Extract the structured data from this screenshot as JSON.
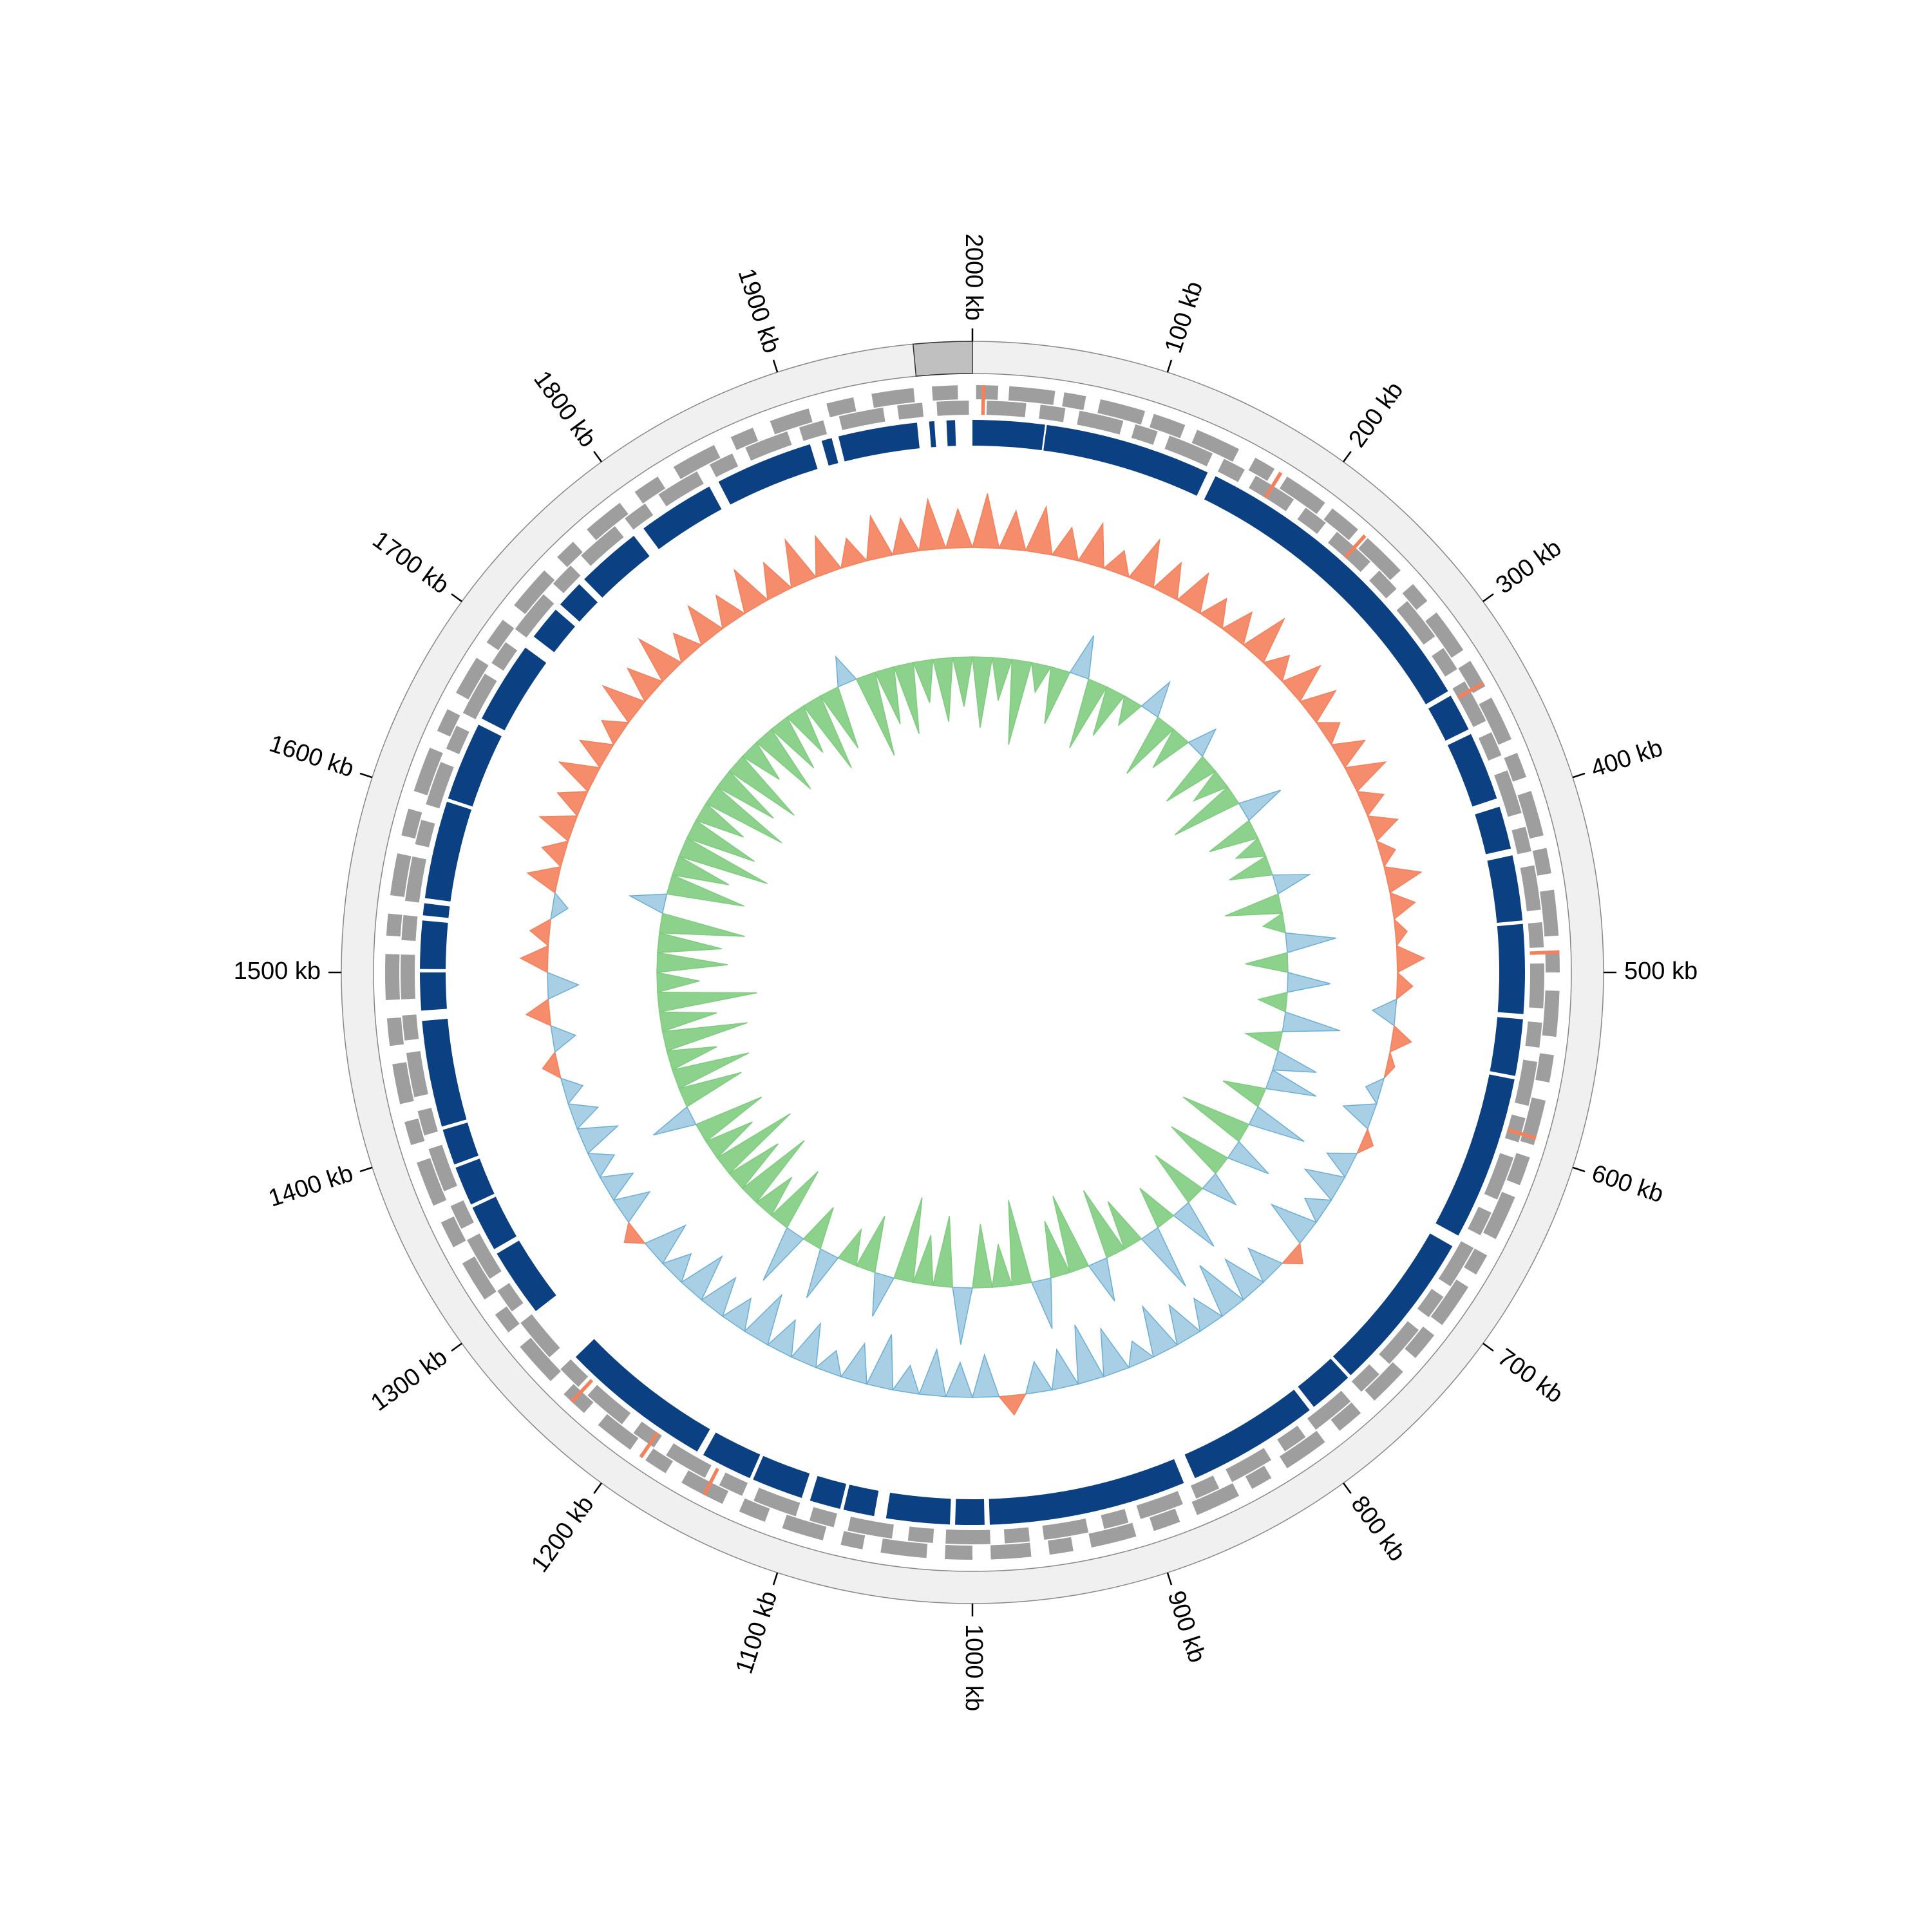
{
  "chart_data": {
    "type": "circular-genome",
    "xlim": [
      0,
      2000
    ],
    "xticks": [
      {
        "value": 100,
        "label": "100 kb"
      },
      {
        "value": 200,
        "label": "200 kb"
      },
      {
        "value": 300,
        "label": "300 kb"
      },
      {
        "value": 400,
        "label": "400 kb"
      },
      {
        "value": 500,
        "label": "500 kb"
      },
      {
        "value": 600,
        "label": "600 kb"
      },
      {
        "value": 700,
        "label": "700 kb"
      },
      {
        "value": 800,
        "label": "800 kb"
      },
      {
        "value": 900,
        "label": "900 kb"
      },
      {
        "value": 1000,
        "label": "1000 kb"
      },
      {
        "value": 1100,
        "label": "1100 kb"
      },
      {
        "value": 1200,
        "label": "1200 kb"
      },
      {
        "value": 1300,
        "label": "1300 kb"
      },
      {
        "value": 1400,
        "label": "1400 kb"
      },
      {
        "value": 1500,
        "label": "1500 kb"
      },
      {
        "value": 1600,
        "label": "1600 kb"
      },
      {
        "value": 1700,
        "label": "1700 kb"
      },
      {
        "value": 1800,
        "label": "1800 kb"
      },
      {
        "value": 1900,
        "label": "1900 kb"
      },
      {
        "value": 2000,
        "label": "2000 kb"
      }
    ],
    "highlight": {
      "range": [
        1970,
        2000
      ],
      "color": "#c0c0c0"
    },
    "forward_genes": {
      "color": "#9e9e9e",
      "features": [
        [
          2,
          14
        ],
        [
          20,
          45
        ],
        [
          50,
          62
        ],
        [
          70,
          95
        ],
        [
          100,
          118
        ],
        [
          125,
          150
        ],
        [
          160,
          172
        ],
        [
          180,
          205
        ],
        [
          210,
          228
        ],
        [
          235,
          260
        ],
        [
          270,
          282
        ],
        [
          290,
          315
        ],
        [
          322,
          338
        ],
        [
          345,
          370
        ],
        [
          378,
          392
        ],
        [
          400,
          425
        ],
        [
          432,
          446
        ],
        [
          455,
          480
        ],
        [
          488,
          500
        ],
        [
          510,
          535
        ],
        [
          545,
          560
        ],
        [
          570,
          595
        ],
        [
          602,
          618
        ],
        [
          625,
          650
        ],
        [
          660,
          672
        ],
        [
          680,
          705
        ],
        [
          712,
          728
        ],
        [
          738,
          760
        ],
        [
          770,
          785
        ],
        [
          795,
          820
        ],
        [
          830,
          842
        ],
        [
          850,
          875
        ],
        [
          885,
          900
        ],
        [
          910,
          935
        ],
        [
          945,
          958
        ],
        [
          968,
          990
        ],
        [
          1000,
          1015
        ],
        [
          1025,
          1050
        ],
        [
          1060,
          1072
        ],
        [
          1082,
          1105
        ],
        [
          1115,
          1130
        ],
        [
          1140,
          1165
        ],
        [
          1175,
          1188
        ],
        [
          1198,
          1220
        ],
        [
          1230,
          1245
        ],
        [
          1255,
          1280
        ],
        [
          1290,
          1302
        ],
        [
          1312,
          1335
        ],
        [
          1345,
          1360
        ],
        [
          1370,
          1395
        ],
        [
          1405,
          1418
        ],
        [
          1428,
          1450
        ],
        [
          1460,
          1475
        ],
        [
          1485,
          1510
        ],
        [
          1520,
          1532
        ],
        [
          1542,
          1565
        ],
        [
          1575,
          1590
        ],
        [
          1600,
          1625
        ],
        [
          1635,
          1648
        ],
        [
          1658,
          1680
        ],
        [
          1690,
          1705
        ],
        [
          1715,
          1740
        ],
        [
          1750,
          1762
        ],
        [
          1772,
          1795
        ],
        [
          1805,
          1820
        ],
        [
          1830,
          1855
        ],
        [
          1865,
          1878
        ],
        [
          1888,
          1910
        ],
        [
          1920,
          1935
        ],
        [
          1945,
          1968
        ],
        [
          1978,
          1992
        ]
      ]
    },
    "reverse_genes": {
      "color": "#9e9e9e",
      "features": [
        [
          8,
          30
        ],
        [
          38,
          52
        ],
        [
          60,
          85
        ],
        [
          92,
          105
        ],
        [
          112,
          138
        ],
        [
          145,
          158
        ],
        [
          165,
          190
        ],
        [
          198,
          212
        ],
        [
          220,
          245
        ],
        [
          252,
          266
        ],
        [
          275,
          300
        ],
        [
          308,
          322
        ],
        [
          330,
          355
        ],
        [
          362,
          376
        ],
        [
          385,
          410
        ],
        [
          418,
          432
        ],
        [
          440,
          465
        ],
        [
          472,
          486
        ],
        [
          495,
          520
        ],
        [
          528,
          542
        ],
        [
          550,
          575
        ],
        [
          582,
          596
        ],
        [
          605,
          630
        ],
        [
          638,
          652
        ],
        [
          660,
          685
        ],
        [
          692,
          706
        ],
        [
          715,
          740
        ],
        [
          748,
          762
        ],
        [
          770,
          795
        ],
        [
          802,
          816
        ],
        [
          825,
          850
        ],
        [
          858,
          872
        ],
        [
          880,
          905
        ],
        [
          912,
          926
        ],
        [
          935,
          960
        ],
        [
          968,
          982
        ],
        [
          990,
          1015
        ],
        [
          1022,
          1036
        ],
        [
          1045,
          1070
        ],
        [
          1078,
          1092
        ],
        [
          1100,
          1125
        ],
        [
          1132,
          1146
        ],
        [
          1155,
          1180
        ],
        [
          1188,
          1202
        ],
        [
          1210,
          1235
        ],
        [
          1242,
          1256
        ],
        [
          1265,
          1290
        ],
        [
          1298,
          1312
        ],
        [
          1320,
          1345
        ],
        [
          1352,
          1366
        ],
        [
          1375,
          1400
        ],
        [
          1408,
          1422
        ],
        [
          1430,
          1455
        ],
        [
          1462,
          1476
        ],
        [
          1485,
          1510
        ],
        [
          1518,
          1532
        ],
        [
          1540,
          1565
        ],
        [
          1572,
          1586
        ],
        [
          1595,
          1620
        ],
        [
          1628,
          1642
        ],
        [
          1650,
          1675
        ],
        [
          1682,
          1696
        ],
        [
          1705,
          1730
        ],
        [
          1738,
          1752
        ],
        [
          1760,
          1785
        ],
        [
          1792,
          1806
        ],
        [
          1815,
          1840
        ],
        [
          1848,
          1862
        ],
        [
          1870,
          1895
        ],
        [
          1902,
          1916
        ],
        [
          1925,
          1950
        ],
        [
          1958,
          1972
        ],
        [
          1980,
          1998
        ]
      ]
    },
    "rna_genes": {
      "color": "#f4805c",
      "features": [
        [
          5,
          7
        ],
        [
          175,
          177
        ],
        [
          232,
          234
        ],
        [
          335,
          337
        ],
        [
          488,
          490
        ],
        [
          590,
          592
        ],
        [
          1150,
          1152
        ],
        [
          1190,
          1192
        ],
        [
          1238,
          1240
        ]
      ]
    },
    "contigs": {
      "color": "#0b4083",
      "features": [
        [
          0,
          42
        ],
        [
          43,
          140
        ],
        [
          145,
          330
        ],
        [
          333,
          355
        ],
        [
          358,
          398
        ],
        [
          403,
          428
        ],
        [
          432,
          470
        ],
        [
          472,
          524
        ],
        [
          527,
          560
        ],
        [
          562,
          658
        ],
        [
          665,
          760
        ],
        [
          762,
          788
        ],
        [
          791,
          868
        ],
        [
          875,
          990
        ],
        [
          993,
          1010
        ],
        [
          1013,
          1050
        ],
        [
          1057,
          1075
        ],
        [
          1077,
          1095
        ],
        [
          1100,
          1130
        ],
        [
          1132,
          1162
        ],
        [
          1166,
          1255
        ],
        [
          1290,
          1330
        ],
        [
          1333,
          1360
        ],
        [
          1362,
          1385
        ],
        [
          1387,
          1408
        ],
        [
          1410,
          1472
        ],
        [
          1478,
          1500
        ],
        [
          1502,
          1530
        ],
        [
          1533,
          1540
        ],
        [
          1543,
          1600
        ],
        [
          1602,
          1648
        ],
        [
          1652,
          1700
        ],
        [
          1708,
          1728
        ],
        [
          1732,
          1748
        ],
        [
          1752,
          1790
        ],
        [
          1797,
          1842
        ],
        [
          1848,
          1905
        ],
        [
          1912,
          1918
        ],
        [
          1922,
          1968
        ],
        [
          1975,
          1978
        ],
        [
          1985,
          1990
        ]
      ]
    },
    "gc_content": {
      "color": "#f4805c",
      "negative_color": "#9ecae1",
      "ylim": [
        -1,
        1
      ],
      "x": [
        0,
        20,
        40,
        60,
        80,
        100,
        120,
        140,
        160,
        180,
        200,
        220,
        240,
        260,
        280,
        300,
        320,
        340,
        360,
        380,
        400,
        420,
        440,
        460,
        480,
        500,
        520,
        540,
        560,
        580,
        600,
        620,
        640,
        660,
        680,
        700,
        720,
        740,
        760,
        780,
        800,
        820,
        840,
        860,
        880,
        900,
        920,
        940,
        960,
        980,
        1000,
        1020,
        1040,
        1060,
        1080,
        1100,
        1120,
        1140,
        1160,
        1180,
        1200,
        1220,
        1240,
        1260,
        1280,
        1300,
        1320,
        1340,
        1360,
        1380,
        1400,
        1420,
        1440,
        1460,
        1480,
        1500,
        1520,
        1540,
        1560,
        1580,
        1600,
        1620,
        1640,
        1660,
        1680,
        1700,
        1720,
        1740,
        1760,
        1780,
        1800,
        1820,
        1840,
        1860,
        1880,
        1900,
        1920,
        1940,
        1960,
        1980
      ],
      "values": [
        0.7,
        0.5,
        0.6,
        0.4,
        0.55,
        0.3,
        0.6,
        0.45,
        0.5,
        0.35,
        0.4,
        0.6,
        0.3,
        0.5,
        0.45,
        0.25,
        0.4,
        0.5,
        0.3,
        0.35,
        0.2,
        0.45,
        0.3,
        0.15,
        0.35,
        0.2,
        -0.3,
        0.25,
        0.1,
        -0.2,
        -0.4,
        0.15,
        -0.35,
        -0.5,
        -0.3,
        -0.6,
        0.2,
        -0.45,
        -0.55,
        -0.7,
        -0.4,
        -0.5,
        -0.65,
        -0.3,
        -0.6,
        -0.75,
        -0.5,
        -0.4,
        0.25,
        -0.55,
        -0.45,
        -0.6,
        -0.35,
        -0.7,
        -0.5,
        -0.3,
        -0.55,
        -0.45,
        -0.65,
        -0.4,
        -0.5,
        -0.6,
        -0.35,
        -0.55,
        0.2,
        -0.45,
        -0.4,
        -0.3,
        -0.5,
        -0.35,
        -0.25,
        0.2,
        -0.3,
        0.3,
        -0.4,
        0.35,
        0.25,
        -0.2,
        0.4,
        0.3,
        0.45,
        0.35,
        0.5,
        0.4,
        0.3,
        0.55,
        0.45,
        0.6,
        0.35,
        0.5,
        0.4,
        0.55,
        0.45,
        0.6,
        0.5,
        0.35,
        0.55,
        0.45,
        0.65,
        0.5
      ]
    },
    "gc_skew": {
      "color": "#7fcc7f",
      "negative_color": "#9ecae1",
      "ylim": [
        -1,
        1
      ],
      "x": [
        0,
        20,
        40,
        60,
        80,
        100,
        120,
        140,
        160,
        180,
        200,
        220,
        240,
        260,
        280,
        300,
        320,
        340,
        360,
        380,
        400,
        420,
        440,
        460,
        480,
        500,
        520,
        540,
        560,
        580,
        600,
        620,
        640,
        660,
        680,
        700,
        720,
        740,
        760,
        780,
        800,
        820,
        840,
        860,
        880,
        900,
        920,
        940,
        960,
        980,
        1000,
        1020,
        1040,
        1060,
        1080,
        1100,
        1120,
        1140,
        1160,
        1180,
        1200,
        1220,
        1240,
        1260,
        1280,
        1300,
        1320,
        1340,
        1360,
        1380,
        1400,
        1420,
        1440,
        1460,
        1480,
        1500,
        1520,
        1540,
        1560,
        1580,
        1600,
        1620,
        1640,
        1660,
        1680,
        1700,
        1720,
        1740,
        1760,
        1780,
        1800,
        1820,
        1840,
        1860,
        1880,
        1900,
        1920,
        1940,
        1960,
        1980
      ],
      "values": [
        0.5,
        0.3,
        0.6,
        0.2,
        0.4,
        -0.3,
        0.5,
        0.35,
        0.2,
        -0.25,
        0.45,
        0.3,
        -0.2,
        0.4,
        0.25,
        0.5,
        -0.3,
        0.35,
        0.2,
        0.3,
        -0.25,
        0.4,
        0.15,
        -0.35,
        0.3,
        -0.3,
        0.2,
        -0.4,
        0.25,
        -0.3,
        -0.35,
        0.3,
        -0.4,
        0.5,
        -0.3,
        0.45,
        -0.25,
        0.4,
        -0.35,
        0.3,
        -0.45,
        0.35,
        0.5,
        -0.3,
        0.55,
        0.4,
        -0.35,
        0.6,
        0.3,
        0.45,
        -0.4,
        0.5,
        0.35,
        0.6,
        -0.3,
        0.4,
        0.25,
        -0.35,
        0.3,
        -0.4,
        0.45,
        0.3,
        0.55,
        0.4,
        0.6,
        0.35,
        0.5,
        -0.3,
        0.45,
        0.55,
        0.35,
        0.6,
        0.4,
        0.7,
        0.3,
        0.5,
        0.45,
        0.6,
        -0.25,
        0.55,
        0.4,
        0.65,
        0.5,
        0.35,
        0.6,
        0.45,
        0.55,
        0.3,
        0.5,
        0.4,
        0.35,
        0.55,
        0.45,
        -0.2,
        0.6,
        0.4,
        0.5,
        0.3,
        0.45,
        0.35
      ]
    }
  }
}
